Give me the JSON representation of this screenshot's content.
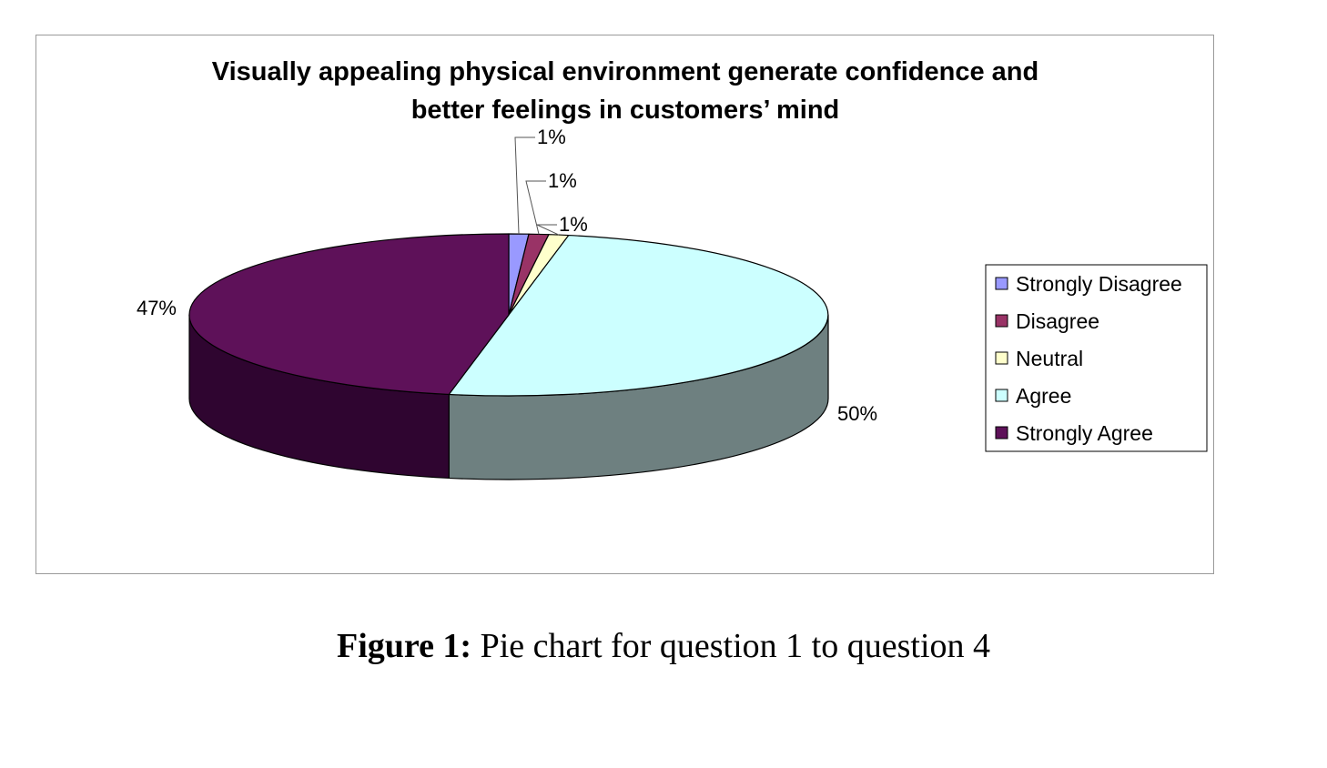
{
  "chart_data": {
    "type": "pie",
    "title_lines": [
      "Visually appealing physical environment generate confidence and",
      "better feelings in customers’ mind"
    ],
    "slices": [
      {
        "name": "Strongly Disagree",
        "value": 1,
        "label": "1%",
        "color": "#9999FF",
        "side_color": "#5c5c99"
      },
      {
        "name": "Disagree",
        "value": 1,
        "label": "1%",
        "color": "#993366",
        "side_color": "#5c1f3d"
      },
      {
        "name": "Neutral",
        "value": 1,
        "label": "1%",
        "color": "#FFFFCC",
        "side_color": "#99997a"
      },
      {
        "name": "Agree",
        "value": 50,
        "label": "50%",
        "color": "#CCFFFF",
        "side_color": "#6e8080"
      },
      {
        "name": "Strongly Agree",
        "value": 47,
        "label": "47%",
        "color": "#5E1159",
        "side_color": "#2f0530"
      }
    ],
    "legend_position": "right",
    "three_d": true
  },
  "caption": {
    "prefix": "Figure 1:",
    "text": " Pie chart for question 1 to question 4"
  }
}
